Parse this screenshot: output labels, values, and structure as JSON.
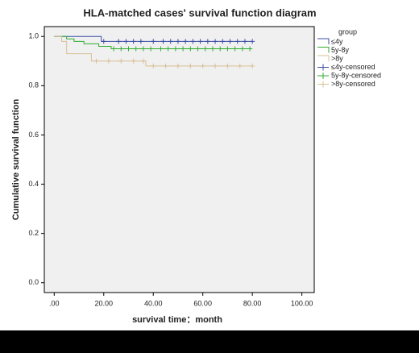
{
  "chart_data": {
    "type": "survival",
    "title": "HLA-matched cases' survival function diagram",
    "x_label": "survival time：month",
    "y_label": "Cumulative survival function",
    "legend_title": "group",
    "xlim": [
      -4,
      105
    ],
    "ylim": [
      -0.04,
      1.04
    ],
    "xticks": [
      {
        "value": 0,
        "label": ".00"
      },
      {
        "value": 20,
        "label": "20.00"
      },
      {
        "value": 40,
        "label": "40.00"
      },
      {
        "value": 60,
        "label": "60.00"
      },
      {
        "value": 80,
        "label": "80.00"
      },
      {
        "value": 100,
        "label": "100.00"
      }
    ],
    "yticks": [
      {
        "value": 0,
        "label": "0.0"
      },
      0.2,
      0.4,
      0.6,
      0.8,
      {
        "value": 1,
        "label": "1.0"
      }
    ],
    "series": [
      {
        "name": "≤4y",
        "color": "#3b4ea6",
        "kind": "step",
        "x": [
          0,
          19,
          80
        ],
        "values": [
          1.0,
          0.98,
          0.98
        ]
      },
      {
        "name": "5y-8y",
        "color": "#2fae2f",
        "kind": "step",
        "x": [
          0,
          5,
          8,
          12,
          18,
          23,
          80
        ],
        "values": [
          1.0,
          0.99,
          0.98,
          0.97,
          0.96,
          0.95,
          0.95
        ]
      },
      {
        "name": ">8y",
        "color": "#d8c096",
        "kind": "step",
        "x": [
          0,
          3,
          5,
          15,
          37,
          80
        ],
        "values": [
          1.0,
          0.98,
          0.93,
          0.9,
          0.88,
          0.88
        ]
      },
      {
        "name": "≤4y-censored",
        "color": "#3b4ea6",
        "kind": "censored",
        "x": [
          20,
          26,
          29,
          32,
          35,
          40,
          44,
          47,
          50,
          53,
          56,
          59,
          62,
          65,
          68,
          71,
          74,
          77,
          80
        ],
        "values": [
          0.98,
          0.98,
          0.98,
          0.98,
          0.98,
          0.98,
          0.98,
          0.98,
          0.98,
          0.98,
          0.98,
          0.98,
          0.98,
          0.98,
          0.98,
          0.98,
          0.98,
          0.98,
          0.98
        ]
      },
      {
        "name": "5y-8y-censored",
        "color": "#2fae2f",
        "kind": "censored",
        "x": [
          24,
          27,
          30,
          33,
          36,
          39,
          43,
          46,
          49,
          52,
          55,
          58,
          61,
          64,
          67,
          70,
          73,
          76,
          79
        ],
        "values": [
          0.95,
          0.95,
          0.95,
          0.95,
          0.95,
          0.95,
          0.95,
          0.95,
          0.95,
          0.95,
          0.95,
          0.95,
          0.95,
          0.95,
          0.95,
          0.95,
          0.95,
          0.95,
          0.95
        ]
      },
      {
        "name": ">8y-censored",
        "color": "#d8c096",
        "kind": "censored",
        "x": [
          17,
          22,
          27,
          32,
          36,
          40,
          45,
          50,
          55,
          60,
          65,
          70,
          75,
          80
        ],
        "values": [
          0.9,
          0.9,
          0.9,
          0.9,
          0.9,
          0.88,
          0.88,
          0.88,
          0.88,
          0.88,
          0.88,
          0.88,
          0.88,
          0.88
        ]
      }
    ]
  }
}
